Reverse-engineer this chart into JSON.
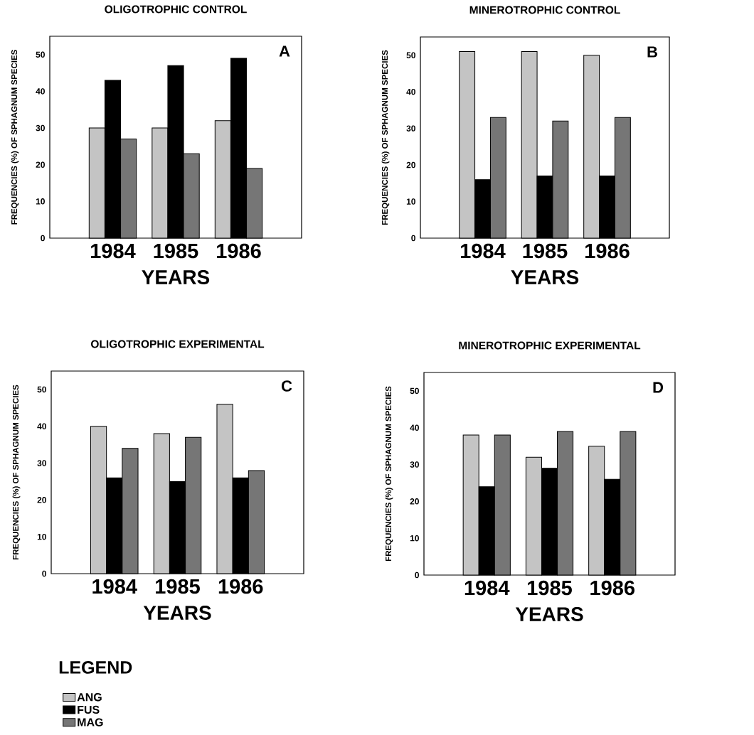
{
  "chart_data": [
    {
      "type": "bar",
      "title": "OLIGOTROPHIC CONTROL",
      "xlabel": "YEARS",
      "ylabel": "FREQUENCIES (%) OF SPHAGNUM SPECIES",
      "categories": [
        "1984",
        "1985",
        "1986"
      ],
      "series": [
        {
          "color": "#c4c4c4",
          "values": [
            30,
            30,
            32
          ]
        },
        {
          "color": "#000000",
          "values": [
            43,
            47,
            49
          ]
        },
        {
          "color": "#767676",
          "values": [
            27,
            23,
            19
          ]
        }
      ],
      "ylim": [
        0,
        55
      ],
      "yticks": [
        0,
        10,
        20,
        30,
        40,
        50
      ],
      "annotations": [
        "A"
      ]
    },
    {
      "type": "bar",
      "title": "MINEROTROPHIC CONTROL",
      "xlabel": "YEARS",
      "ylabel": "FREQUENCIES (%) OF SPHAGNUM SPECIES",
      "categories": [
        "1984",
        "1985",
        "1986"
      ],
      "series": [
        {
          "color": "#c4c4c4",
          "values": [
            51,
            51,
            50
          ]
        },
        {
          "color": "#000000",
          "values": [
            16,
            17,
            17
          ]
        },
        {
          "color": "#767676",
          "values": [
            33,
            32,
            33
          ]
        }
      ],
      "ylim": [
        0,
        55
      ],
      "yticks": [
        0,
        10,
        20,
        30,
        40,
        50
      ],
      "annotations": [
        "B"
      ]
    },
    {
      "type": "bar",
      "title": "OLIGOTROPHIC EXPERIMENTAL",
      "xlabel": "YEARS",
      "ylabel": "FREQUENCIES (%) OF SPHAGNUM SPECIES",
      "categories": [
        "1984",
        "1985",
        "1986"
      ],
      "series": [
        {
          "name": "ANG",
          "color": "#c4c4c4",
          "values": [
            40,
            38,
            46
          ]
        },
        {
          "name": "FUS",
          "color": "#000000",
          "values": [
            26,
            25,
            26
          ]
        },
        {
          "name": "MAG",
          "color": "#767676",
          "values": [
            34,
            37,
            28
          ]
        }
      ],
      "ylim": [
        0,
        55
      ],
      "yticks": [
        0,
        10,
        20,
        30,
        40,
        50
      ],
      "annotations": [
        "C"
      ],
      "legend": "bottom left",
      "legend_title": "LEGEND"
    },
    {
      "type": "bar",
      "title": "MINEROTROPHIC EXPERIMENTAL",
      "xlabel": "YEARS",
      "ylabel": "FREQUENCIES (%) OF SPHAGNUM SPECIES",
      "categories": [
        "1984",
        "1985",
        "1986"
      ],
      "series": [
        {
          "color": "#c4c4c4",
          "values": [
            38,
            32,
            35
          ]
        },
        {
          "color": "#000000",
          "values": [
            24,
            29,
            26
          ]
        },
        {
          "color": "#767676",
          "values": [
            38,
            39,
            39
          ]
        }
      ],
      "ylim": [
        0,
        55
      ],
      "yticks": [
        0,
        10,
        20,
        30,
        40,
        50
      ],
      "annotations": [
        "D"
      ]
    }
  ]
}
